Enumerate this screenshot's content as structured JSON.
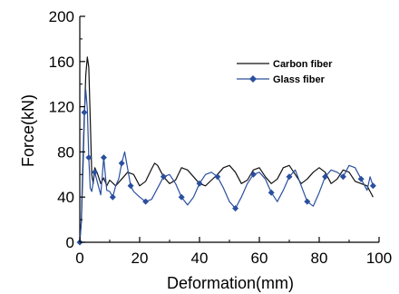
{
  "chart_data": {
    "type": "line",
    "title": "",
    "xlabel": "Deformation(mm)",
    "ylabel": "Force(kN)",
    "xlim": [
      0,
      100
    ],
    "ylim": [
      0,
      200
    ],
    "xticks": [
      "0",
      "20",
      "40",
      "60",
      "80",
      "100"
    ],
    "yticks": [
      "0",
      "40",
      "80",
      "120",
      "160",
      "200"
    ],
    "grid": false,
    "legend_position": "top-right",
    "series": [
      {
        "name": "Carbon fiber",
        "color": "#111111",
        "marker": "none",
        "x": [
          0,
          0.5,
          1,
          1.5,
          2,
          2.5,
          3,
          3.5,
          4,
          4.5,
          5,
          6,
          7,
          8,
          9,
          10,
          12,
          14,
          16,
          18,
          20,
          22,
          24,
          25,
          26,
          28,
          30,
          32,
          34,
          36,
          38,
          40,
          42,
          44,
          46,
          48,
          50,
          52,
          54,
          56,
          58,
          60,
          62,
          64,
          66,
          68,
          70,
          72,
          74,
          76,
          78,
          80,
          82,
          84,
          86,
          88,
          90,
          92,
          94,
          96,
          97,
          98
        ],
        "y": [
          0,
          18,
          60,
          110,
          148,
          164,
          155,
          110,
          60,
          52,
          66,
          60,
          52,
          57,
          50,
          55,
          50,
          56,
          62,
          60,
          50,
          54,
          65,
          70,
          68,
          58,
          52,
          55,
          66,
          64,
          58,
          52,
          50,
          55,
          60,
          66,
          68,
          62,
          52,
          55,
          64,
          66,
          58,
          52,
          56,
          66,
          68,
          60,
          52,
          56,
          62,
          66,
          62,
          52,
          56,
          64,
          62,
          54,
          52,
          50,
          45,
          40
        ]
      },
      {
        "name": "Glass fiber",
        "color": "#2b4f9e",
        "marker": "diamond",
        "x": [
          0,
          0.5,
          1,
          1.5,
          2,
          2.5,
          3,
          3.5,
          4,
          5,
          6,
          7,
          8,
          9,
          10,
          11,
          12,
          13,
          14,
          15,
          16,
          17,
          18,
          20,
          22,
          24,
          26,
          28,
          30,
          32,
          34,
          36,
          38,
          40,
          42,
          44,
          46,
          48,
          50,
          52,
          54,
          56,
          58,
          60,
          62,
          64,
          66,
          68,
          70,
          72,
          74,
          76,
          78,
          80,
          82,
          84,
          86,
          88,
          90,
          92,
          94,
          96,
          97,
          98
        ],
        "y": [
          0,
          20,
          70,
          115,
          135,
          118,
          75,
          48,
          45,
          62,
          52,
          42,
          75,
          46,
          45,
          40,
          50,
          56,
          70,
          80,
          65,
          50,
          45,
          40,
          36,
          38,
          48,
          58,
          60,
          52,
          40,
          33,
          40,
          52,
          60,
          62,
          58,
          48,
          36,
          30,
          40,
          52,
          60,
          62,
          56,
          44,
          36,
          46,
          58,
          64,
          50,
          36,
          32,
          44,
          58,
          64,
          62,
          58,
          68,
          66,
          56,
          46,
          58,
          50
        ]
      }
    ]
  }
}
